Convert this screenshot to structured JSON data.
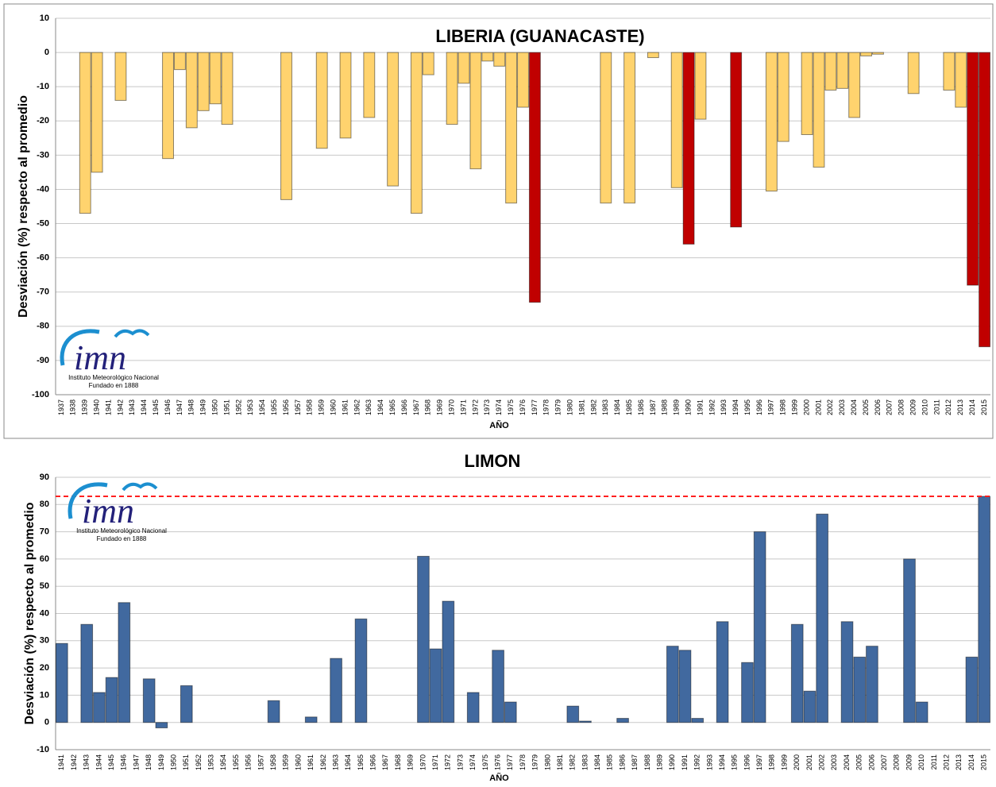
{
  "chart_data": [
    {
      "type": "bar",
      "title": "LIBERIA (GUANACASTE)",
      "x_label": "AÑO",
      "y_label": "Desviación (%) respecto al promedio",
      "logo_text": [
        "imn",
        "Instituto Meteorológico Nacional",
        "Fundado en 1888"
      ],
      "categories": [
        "1937",
        "1938",
        "1939",
        "1940",
        "1941",
        "1942",
        "1943",
        "1944",
        "1945",
        "1946",
        "1947",
        "1948",
        "1949",
        "1950",
        "1951",
        "1952",
        "1953",
        "1954",
        "1955",
        "1956",
        "1957",
        "1958",
        "1959",
        "1960",
        "1961",
        "1962",
        "1963",
        "1964",
        "1965",
        "1966",
        "1967",
        "1968",
        "1969",
        "1970",
        "1971",
        "1972",
        "1973",
        "1974",
        "1975",
        "1976",
        "1977",
        "1978",
        "1979",
        "1980",
        "1981",
        "1982",
        "1983",
        "1984",
        "1985",
        "1986",
        "1987",
        "1988",
        "1989",
        "1990",
        "1991",
        "1992",
        "1993",
        "1994",
        "1995",
        "1996",
        "1997",
        "1998",
        "1999",
        "2000",
        "2001",
        "2002",
        "2003",
        "2004",
        "2005",
        "2006",
        "2007",
        "2008",
        "2009",
        "2010",
        "2011",
        "2012",
        "2013",
        "2014",
        "2015"
      ],
      "values": [
        null,
        null,
        -47,
        -35,
        null,
        -14,
        null,
        null,
        null,
        -31,
        -5,
        -22,
        -17,
        -15,
        -21,
        null,
        null,
        null,
        null,
        -43,
        null,
        null,
        -28,
        null,
        -25,
        null,
        -19,
        null,
        -39,
        null,
        -47,
        -6.5,
        null,
        -21,
        -9,
        -34,
        -2.5,
        -4,
        -44,
        -16,
        -73,
        null,
        null,
        null,
        null,
        null,
        -44,
        null,
        -44,
        null,
        -1.5,
        null,
        -39.5,
        -56,
        -19.5,
        null,
        null,
        -51,
        null,
        null,
        -40.5,
        -26,
        null,
        -24,
        -33.5,
        -11,
        -10.5,
        -19,
        -1,
        -0.5,
        null,
        null,
        -12,
        null,
        null,
        -11,
        -16,
        -68,
        -86
      ],
      "colors": [
        "#ffd36e",
        "#ffd36e",
        "#ffd36e",
        "#ffd36e",
        "#ffd36e",
        "#ffd36e",
        "#ffd36e",
        "#ffd36e",
        "#ffd36e",
        "#ffd36e",
        "#ffd36e",
        "#ffd36e",
        "#ffd36e",
        "#ffd36e",
        "#ffd36e",
        "#ffd36e",
        "#ffd36e",
        "#ffd36e",
        "#ffd36e",
        "#ffd36e",
        "#ffd36e",
        "#ffd36e",
        "#ffd36e",
        "#ffd36e",
        "#ffd36e",
        "#ffd36e",
        "#ffd36e",
        "#ffd36e",
        "#ffd36e",
        "#ffd36e",
        "#ffd36e",
        "#ffd36e",
        "#ffd36e",
        "#ffd36e",
        "#ffd36e",
        "#ffd36e",
        "#ffd36e",
        "#ffd36e",
        "#ffd36e",
        "#ffd36e",
        "#c00000",
        "#ffd36e",
        "#ffd36e",
        "#ffd36e",
        "#ffd36e",
        "#ffd36e",
        "#ffd36e",
        "#ffd36e",
        "#ffd36e",
        "#ffd36e",
        "#ffd36e",
        "#ffd36e",
        "#ffd36e",
        "#c00000",
        "#ffd36e",
        "#ffd36e",
        "#ffd36e",
        "#c00000",
        "#ffd36e",
        "#ffd36e",
        "#ffd36e",
        "#ffd36e",
        "#ffd36e",
        "#ffd36e",
        "#ffd36e",
        "#ffd36e",
        "#ffd36e",
        "#ffd36e",
        "#ffd36e",
        "#ffd36e",
        "#ffd36e",
        "#ffd36e",
        "#ffd36e",
        "#ffd36e",
        "#ffd36e",
        "#ffd36e",
        "#ffd36e",
        "#c00000",
        "#c00000"
      ],
      "ylim": [
        -100,
        10
      ],
      "yticks": [
        10,
        0,
        -10,
        -20,
        -30,
        -40,
        -50,
        -60,
        -70,
        -80,
        -90,
        -100
      ],
      "grid": true
    },
    {
      "type": "bar",
      "title": "LIMON",
      "x_label": "AÑO",
      "y_label": "Desviación (%) respecto al promedio",
      "logo_text": [
        "imn",
        "Instituto Meteorológico Nacional",
        "Fundado en 1888"
      ],
      "categories": [
        "1941",
        "1942",
        "1943",
        "1944",
        "1945",
        "1946",
        "1947",
        "1948",
        "1949",
        "1950",
        "1951",
        "1952",
        "1953",
        "1954",
        "1955",
        "1956",
        "1957",
        "1958",
        "1959",
        "1960",
        "1961",
        "1962",
        "1963",
        "1964",
        "1965",
        "1966",
        "1967",
        "1968",
        "1969",
        "1970",
        "1971",
        "1972",
        "1973",
        "1974",
        "1975",
        "1976",
        "1977",
        "1978",
        "1979",
        "1980",
        "1981",
        "1982",
        "1983",
        "1984",
        "1985",
        "1986",
        "1987",
        "1988",
        "1989",
        "1990",
        "1991",
        "1992",
        "1993",
        "1994",
        "1995",
        "1996",
        "1997",
        "1998",
        "1999",
        "2000",
        "2001",
        "2002",
        "2003",
        "2004",
        "2005",
        "2006",
        "2007",
        "2008",
        "2009",
        "2010",
        "2011",
        "2012",
        "2013",
        "2014",
        "2015"
      ],
      "values": [
        29,
        null,
        36,
        11,
        16.5,
        44,
        null,
        16,
        -2,
        null,
        13.5,
        null,
        null,
        null,
        null,
        null,
        null,
        8,
        null,
        null,
        2,
        null,
        23.5,
        null,
        38,
        null,
        null,
        null,
        null,
        61,
        27,
        44.5,
        null,
        11,
        null,
        26.5,
        7.5,
        null,
        null,
        null,
        null,
        6,
        0.5,
        null,
        null,
        1.5,
        null,
        null,
        null,
        28,
        26.5,
        1.5,
        null,
        37,
        null,
        22,
        70,
        null,
        null,
        36,
        11.5,
        76.5,
        null,
        37,
        24,
        28,
        null,
        null,
        60,
        7.5,
        null,
        null,
        null,
        24,
        83
      ],
      "color": "#41699f",
      "reference_line": {
        "value": 83,
        "color": "#ff2020"
      },
      "ylim": [
        -10,
        90
      ],
      "yticks": [
        90,
        80,
        70,
        60,
        50,
        40,
        30,
        20,
        10,
        0,
        -10
      ],
      "grid": true
    }
  ]
}
